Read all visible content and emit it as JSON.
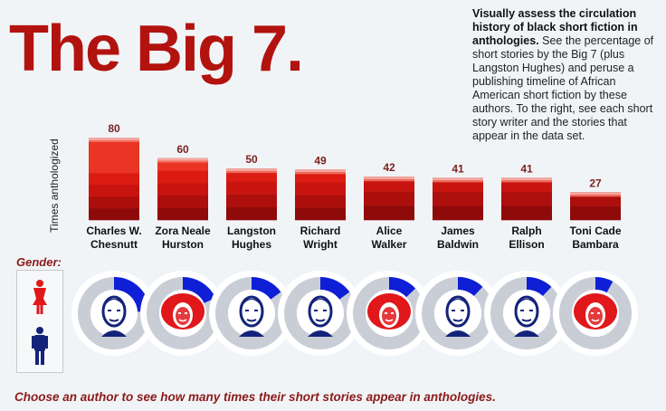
{
  "title": "The Big 7.",
  "description": {
    "lead": "Visually assess the circulation history of black short fiction in anthologies.",
    "body": "See the percentage of short stories by the Big 7 (plus Langston Hughes) and peruse a publishing timeline of African American short fiction by these authors. To the right, see each short story writer and the stories that appear in the data set."
  },
  "gender_label": "Gender:",
  "footer": "Choose an author to see how many times their short stories appear in anthologies.",
  "colors": {
    "female": "#e0181b",
    "male": "#14237a",
    "ring_progress": "#0f1fd6",
    "ring_track": "#c9ced6"
  },
  "chart_data": {
    "type": "bar",
    "ylabel": "Times anthologized",
    "categories": [
      [
        "Charles W.",
        "Chesnutt"
      ],
      [
        "Zora Neale",
        "Hurston"
      ],
      [
        "Langston",
        "Hughes"
      ],
      [
        "Richard",
        "Wright"
      ],
      [
        "Alice",
        "Walker"
      ],
      [
        "James",
        "Baldwin"
      ],
      [
        "Ralph",
        "Ellison"
      ],
      [
        "Toni Cade",
        "Bambara"
      ]
    ],
    "values": [
      80,
      60,
      50,
      49,
      42,
      41,
      41,
      27
    ],
    "ylim": [
      0,
      80
    ]
  },
  "authors": [
    {
      "name": "Charles W. Chesnutt",
      "gender": "male",
      "share": 0.24
    },
    {
      "name": "Zora Neale Hurston",
      "gender": "female",
      "share": 0.18
    },
    {
      "name": "Langston Hughes",
      "gender": "male",
      "share": 0.15
    },
    {
      "name": "Richard Wright",
      "gender": "male",
      "share": 0.15
    },
    {
      "name": "Alice Walker",
      "gender": "female",
      "share": 0.13
    },
    {
      "name": "James Baldwin",
      "gender": "male",
      "share": 0.12
    },
    {
      "name": "Ralph Ellison",
      "gender": "male",
      "share": 0.12
    },
    {
      "name": "Toni Cade Bambara",
      "gender": "female",
      "share": 0.08
    }
  ]
}
